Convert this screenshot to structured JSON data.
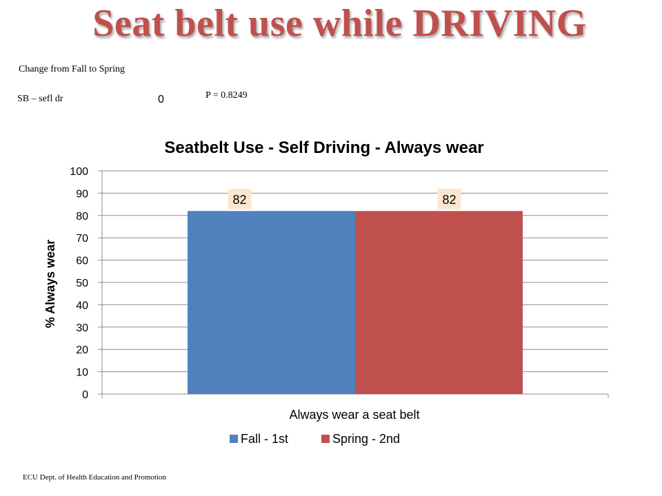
{
  "slide": {
    "title": "Seat belt use while DRIVING",
    "change_label": "Change  from Fall to Spring",
    "row_label": "SB – sefl dr",
    "row_value": "0",
    "p_value": "P = 0.8249",
    "footer": "ECU Dept. of Health Education and Promotion"
  },
  "colors": {
    "title": "#c0504d",
    "fall": "#4f81bd",
    "spring": "#c0504d",
    "data_label_bg": "#fbe7d0",
    "gridline": "#8c8c8c"
  },
  "chart_data": {
    "type": "bar",
    "title": "Seatbelt Use - Self Driving - Always wear",
    "xlabel": "",
    "ylabel": "% Always wear",
    "categories": [
      "Always wear a seat belt"
    ],
    "series": [
      {
        "name": "Fall - 1st",
        "values": [
          82
        ],
        "label": "82"
      },
      {
        "name": "Spring - 2nd",
        "values": [
          82
        ],
        "label": "82"
      }
    ],
    "ylim": [
      0,
      100
    ],
    "yticks": [
      0,
      10,
      20,
      30,
      40,
      50,
      60,
      70,
      80,
      90,
      100
    ],
    "grid": true,
    "legend": "bottom"
  }
}
